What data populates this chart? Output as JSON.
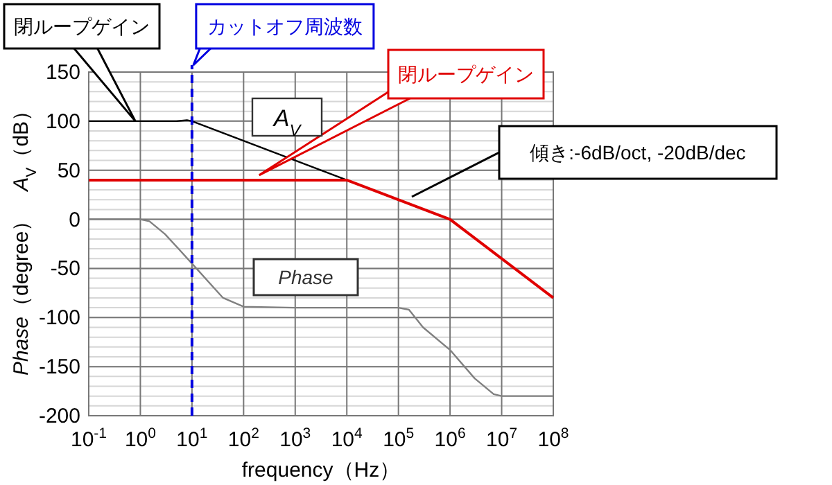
{
  "chart_data": {
    "type": "line",
    "xlabel": "frequency（Hz）",
    "ylabel": "*A*$_{V}$（dB）",
    "log": "x",
    "xlim": [
      0.1,
      100000000
    ],
    "xticks": [
      {
        "value": 0.1,
        "label": "10$^{-1}$"
      },
      {
        "value": 1,
        "label": "10$^{0}$"
      },
      {
        "value": 10,
        "label": "10$^{1}$"
      },
      {
        "value": 100,
        "label": "10$^{2}$"
      },
      {
        "value": 1000,
        "label": "10$^{3}$"
      },
      {
        "value": 10000,
        "label": "10$^{4}$"
      },
      {
        "value": 100000,
        "label": "10$^{5}$"
      },
      {
        "value": 1000000,
        "label": "10$^{6}$"
      },
      {
        "value": 10000000,
        "label": "10$^{7}$"
      },
      {
        "value": 100000000,
        "label": "10$^{8}$"
      }
    ],
    "ylim": [
      -200,
      150
    ],
    "yticks": [
      -200,
      -150,
      -100,
      -50,
      0,
      50,
      100,
      150
    ],
    "grid": true,
    "legend": false,
    "marker": "none",
    "line_style": "solid",
    "series": [
      {
        "name": "閉ループゲイン",
        "color": "#000000",
        "x": [
          0.1,
          1,
          5,
          8,
          10,
          10000,
          1000000
        ],
        "values": [
          100,
          100,
          100,
          101,
          100,
          40,
          0
        ]
      },
      {
        "name": "*Phase*",
        "color": "#808080",
        "x": [
          0.1,
          1,
          1.5,
          3,
          10,
          40,
          100,
          1000,
          100000,
          160000,
          300000,
          1000000,
          3000000,
          7000000,
          10000000,
          100000000
        ],
        "values": [
          0,
          0,
          -2,
          -15,
          -45,
          -80,
          -89,
          -90,
          -90,
          -92,
          -110,
          -133,
          -162,
          -178,
          -180,
          -180
        ]
      },
      {
        "name": "閉ループゲイン",
        "color": "#e00000",
        "x": [
          0.1,
          10000,
          1000000,
          100000000
        ],
        "values": [
          40,
          40,
          0,
          -80
        ]
      }
    ],
    "ref_lines": [
      {
        "axis": "x",
        "value": 10,
        "label": "カットオフ周波数",
        "color": "#0000e0",
        "line_style": "dashed"
      }
    ],
    "annotations": [
      "*Phase*（degree）",
      "*A*$_{V}$",
      "傾き:-6dB/oct, -20dB/dec"
    ]
  }
}
